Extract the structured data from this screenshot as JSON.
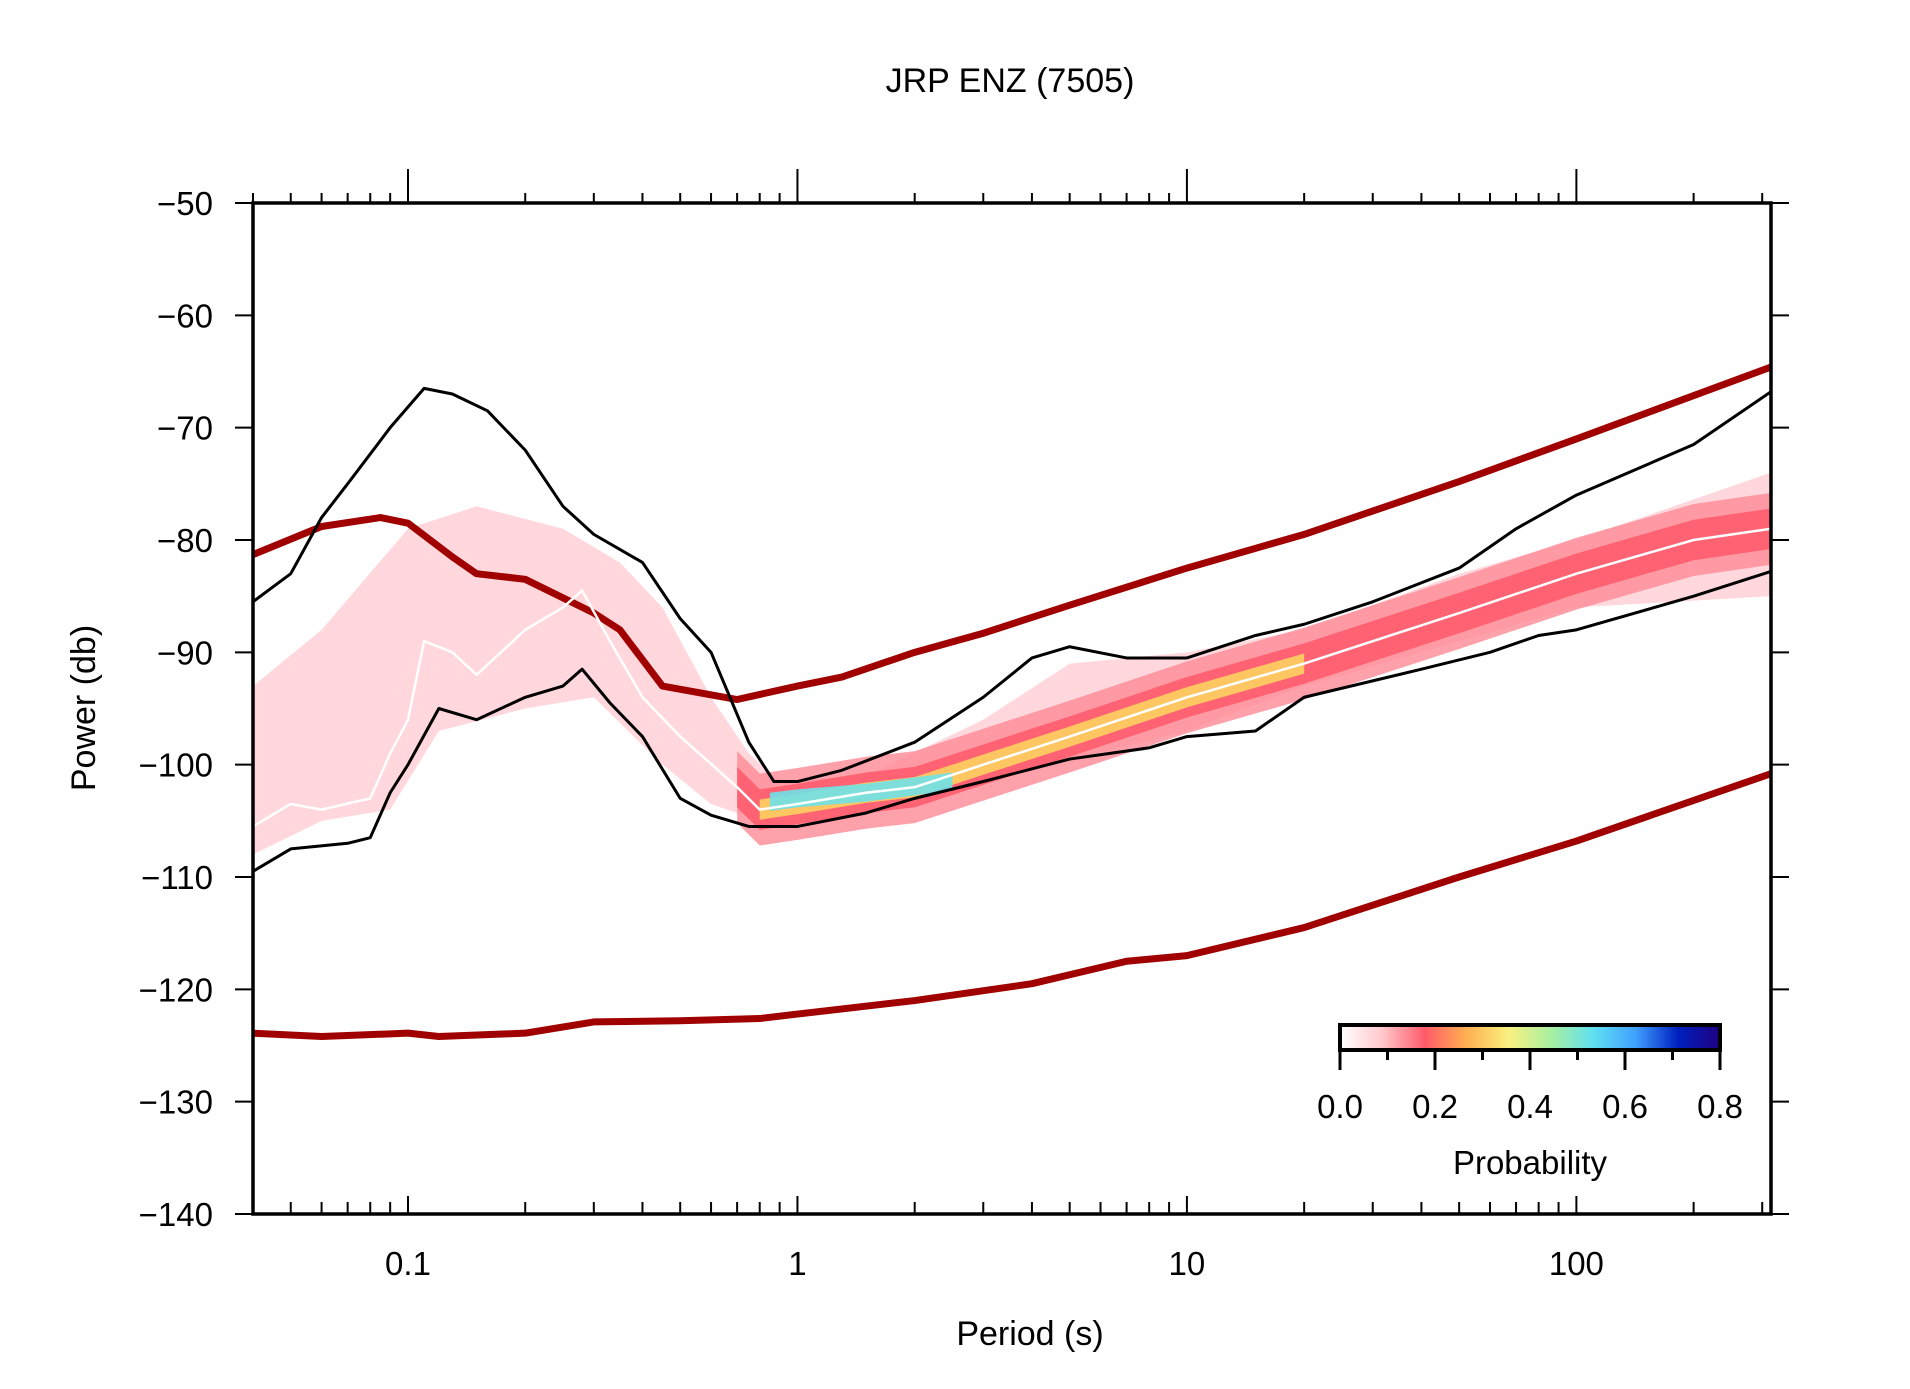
{
  "chart_data": {
    "type": "heatmap",
    "title": "JRP ENZ (7505)",
    "xlabel": "Period (s)",
    "ylabel": "Power (db)",
    "xscale": "log",
    "xlim": [
      0.04,
      316
    ],
    "ylim": [
      -140,
      -50
    ],
    "xticks": [
      0.1,
      1,
      10,
      100
    ],
    "xtick_labels": [
      "0.1",
      "1",
      "10",
      "100"
    ],
    "yticks": [
      -50,
      -60,
      -70,
      -80,
      -90,
      -100,
      -110,
      -120,
      -130,
      -140
    ],
    "ytick_labels": [
      "−50",
      "−60",
      "−70",
      "−80",
      "−90",
      "−100",
      "−110",
      "−120",
      "−130",
      "−140"
    ],
    "grid": false,
    "colorbar": {
      "label": "Probability",
      "range": [
        0,
        0.8
      ],
      "tick_labels": [
        "0.0",
        "0.2",
        "0.4",
        "0.6",
        "0.8"
      ],
      "placement": "bottom-right",
      "colors": [
        "#ffffff",
        "#ffc8cc",
        "#ff5a6a",
        "#ffb050",
        "#f8f080",
        "#a8f0a0",
        "#60e0f0",
        "#40a0ff",
        "#0020c0",
        "#200080"
      ]
    },
    "series": [
      {
        "role": "high-noise-model",
        "color": "#a00000",
        "x": [
          0.04,
          0.06,
          0.085,
          0.1,
          0.13,
          0.15,
          0.2,
          0.3,
          0.35,
          0.45,
          0.7,
          1,
          1.3,
          2,
          3,
          5,
          10,
          20,
          50,
          100,
          316
        ],
        "y": [
          -81.3,
          -78.8,
          -78,
          -78.5,
          -81.5,
          -83,
          -83.5,
          -86.5,
          -88,
          -93,
          -94.2,
          -93,
          -92.2,
          -90,
          -88.3,
          -85.8,
          -82.5,
          -79.5,
          -74.8,
          -71,
          -64.6
        ]
      },
      {
        "role": "low-noise-model",
        "color": "#a00000",
        "x": [
          0.04,
          0.06,
          0.1,
          0.12,
          0.2,
          0.3,
          0.5,
          0.8,
          1,
          2,
          4,
          7,
          10,
          20,
          50,
          100,
          316
        ],
        "y": [
          -123.9,
          -124.2,
          -123.9,
          -124.2,
          -123.9,
          -122.9,
          -122.8,
          -122.6,
          -122.2,
          -121,
          -119.5,
          -117.5,
          -117,
          -114.5,
          -110,
          -106.8,
          -100.8
        ]
      },
      {
        "role": "max",
        "color": "#000000",
        "x": [
          0.04,
          0.05,
          0.06,
          0.07,
          0.09,
          0.11,
          0.13,
          0.16,
          0.2,
          0.25,
          0.3,
          0.4,
          0.5,
          0.6,
          0.75,
          0.87,
          1,
          1.3,
          2,
          3,
          4,
          5,
          7,
          10,
          15,
          20,
          30,
          50,
          70,
          100,
          200,
          316
        ],
        "y": [
          -85.5,
          -83,
          -78,
          -75,
          -70,
          -66.5,
          -67,
          -68.5,
          -72,
          -77,
          -79.5,
          -82,
          -87,
          -90,
          -98,
          -101.5,
          -101.5,
          -100.5,
          -98,
          -94,
          -90.5,
          -89.5,
          -90.5,
          -90.5,
          -88.5,
          -87.5,
          -85.5,
          -82.5,
          -79,
          -76,
          -71.5,
          -66.8
        ]
      },
      {
        "role": "min",
        "color": "#000000",
        "x": [
          0.04,
          0.05,
          0.07,
          0.08,
          0.09,
          0.1,
          0.12,
          0.15,
          0.2,
          0.25,
          0.28,
          0.33,
          0.4,
          0.5,
          0.6,
          0.75,
          1,
          1.5,
          2,
          3,
          5,
          8,
          10,
          15,
          20,
          40,
          60,
          80,
          100,
          200,
          316
        ],
        "y": [
          -109.5,
          -107.5,
          -107,
          -106.5,
          -102.5,
          -100,
          -95,
          -96,
          -94,
          -93,
          -91.5,
          -94.5,
          -97.5,
          -103,
          -104.5,
          -105.5,
          -105.5,
          -104.3,
          -103,
          -101.5,
          -99.5,
          -98.5,
          -97.5,
          -97,
          -94,
          -91.5,
          -90,
          -88.5,
          -88,
          -85,
          -82.8
        ]
      },
      {
        "role": "mode",
        "color": "#ffffff",
        "x": [
          0.04,
          0.05,
          0.06,
          0.08,
          0.09,
          0.1,
          0.11,
          0.13,
          0.15,
          0.2,
          0.25,
          0.28,
          0.33,
          0.4,
          0.5,
          0.7,
          0.8,
          1,
          1.5,
          2,
          3,
          5,
          10,
          20,
          50,
          100,
          200,
          316
        ],
        "y": [
          -105.5,
          -103.5,
          -104,
          -103,
          -99,
          -96,
          -89,
          -90,
          -92,
          -88,
          -86,
          -84.5,
          -89,
          -94,
          -97.5,
          -102,
          -104,
          -103.5,
          -102.5,
          -102,
          -100,
          -97.5,
          -94,
          -91,
          -86.5,
          -83,
          -80,
          -79
        ]
      }
    ],
    "density_envelope": {
      "x_upper": [
        0.04,
        0.06,
        0.1,
        0.15,
        0.25,
        0.35,
        0.45,
        0.6,
        0.75,
        0.9,
        1.5,
        3,
        5,
        10,
        20,
        50,
        100,
        316
      ],
      "y_upper": [
        -93,
        -88,
        -79,
        -77,
        -79,
        -82,
        -86,
        -94,
        -99,
        -101.5,
        -101,
        -96,
        -91,
        -90,
        -88,
        -83,
        -80,
        -74
      ],
      "x_lower": [
        0.04,
        0.06,
        0.09,
        0.12,
        0.2,
        0.3,
        0.45,
        0.6,
        0.8,
        1,
        2,
        3,
        10,
        20,
        50,
        100,
        316
      ],
      "y_lower": [
        -108,
        -105,
        -104,
        -97,
        -95,
        -94,
        -100,
        -103.5,
        -105,
        -104.5,
        -103,
        -101.5,
        -97,
        -93,
        -89,
        -86,
        -85
      ]
    }
  }
}
